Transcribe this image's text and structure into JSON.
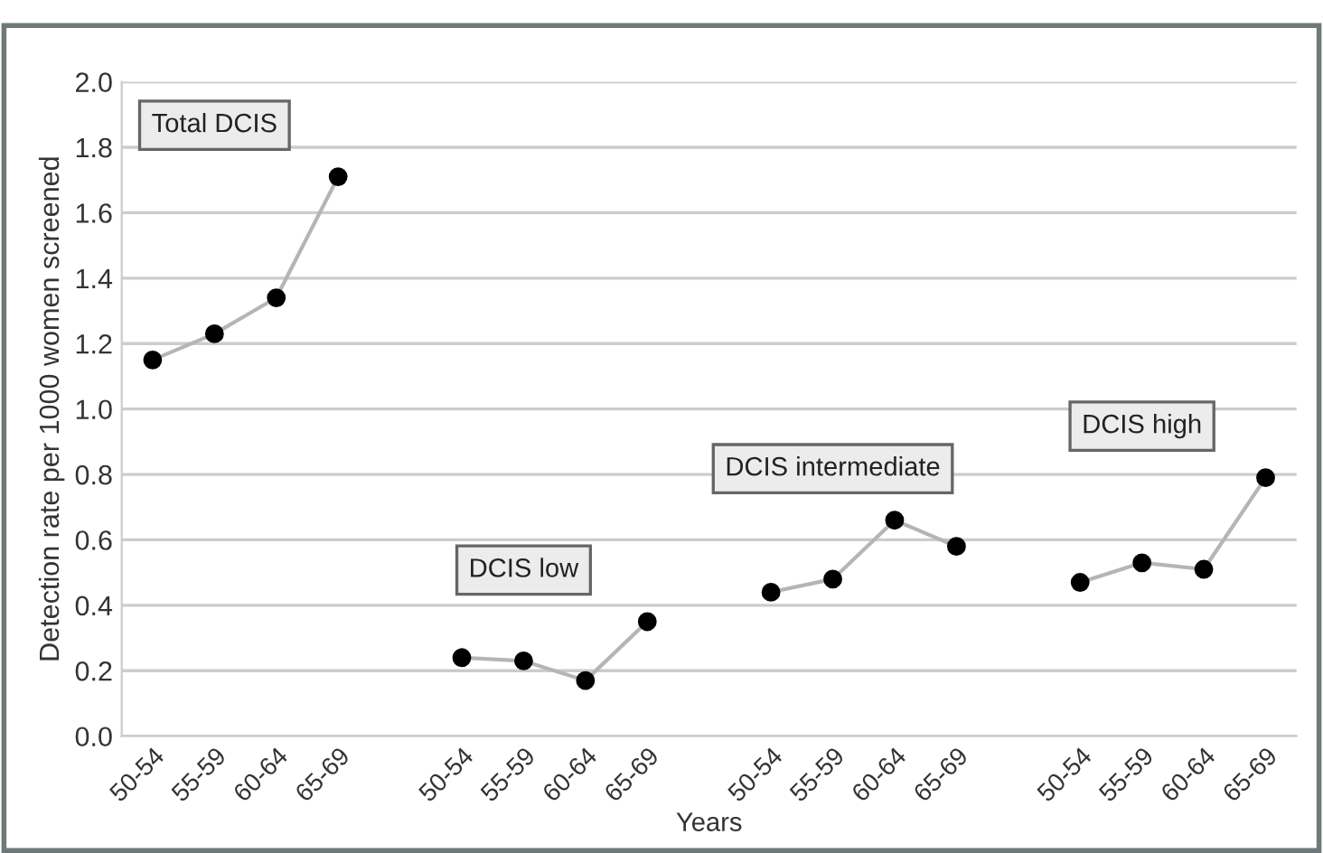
{
  "chart_data": {
    "type": "line",
    "xlabel": "Years",
    "ylabel": "Detection rate per 1000 women screened",
    "categories": [
      "50-54",
      "55-59",
      "60-64",
      "65-69",
      null,
      "50-54",
      "55-59",
      "60-64",
      "65-69",
      null,
      "50-54",
      "55-59",
      "60-64",
      "65-69",
      null,
      "50-54",
      "55-59",
      "60-64",
      "65-69"
    ],
    "series": [
      {
        "color": "#000000",
        "values": [
          1.15,
          1.23,
          1.34,
          1.71,
          null,
          null,
          null,
          null,
          null,
          null,
          null,
          null,
          null,
          null,
          null,
          null,
          null,
          null,
          null
        ]
      },
      {
        "color": "#000000",
        "values": [
          null,
          null,
          null,
          null,
          null,
          0.24,
          0.23,
          0.17,
          0.35,
          null,
          null,
          null,
          null,
          null,
          null,
          null,
          null,
          null,
          null
        ]
      },
      {
        "color": "#000000",
        "values": [
          null,
          null,
          null,
          null,
          null,
          null,
          null,
          null,
          null,
          null,
          0.44,
          0.48,
          0.66,
          0.58,
          null,
          null,
          null,
          null,
          null
        ]
      },
      {
        "color": "#000000",
        "values": [
          null,
          null,
          null,
          null,
          null,
          null,
          null,
          null,
          null,
          null,
          null,
          null,
          null,
          null,
          null,
          0.47,
          0.53,
          0.51,
          0.79
        ]
      }
    ],
    "annotations": [
      "Total DCIS",
      "DCIS low",
      "DCIS intermediate",
      "DCIS high"
    ],
    "ylim": [
      0,
      2.0
    ],
    "yticks": [
      {
        "value": 0,
        "label": "0.0"
      },
      {
        "value": 0.2,
        "label": "0.2"
      },
      {
        "value": 0.4,
        "label": "0.4"
      },
      {
        "value": 0.6,
        "label": "0.6"
      },
      {
        "value": 0.8,
        "label": "0.8"
      },
      {
        "value": 1.0,
        "label": "1.0"
      },
      {
        "value": 1.2,
        "label": "1.2"
      },
      {
        "value": 1.4,
        "label": "1.4"
      },
      {
        "value": 1.6,
        "label": "1.6"
      },
      {
        "value": 1.8,
        "label": "1.8"
      },
      {
        "value": 2.0,
        "label": "2.0"
      }
    ],
    "grid": "y",
    "marker": "circle",
    "line_style": "solid",
    "legend": false
  }
}
